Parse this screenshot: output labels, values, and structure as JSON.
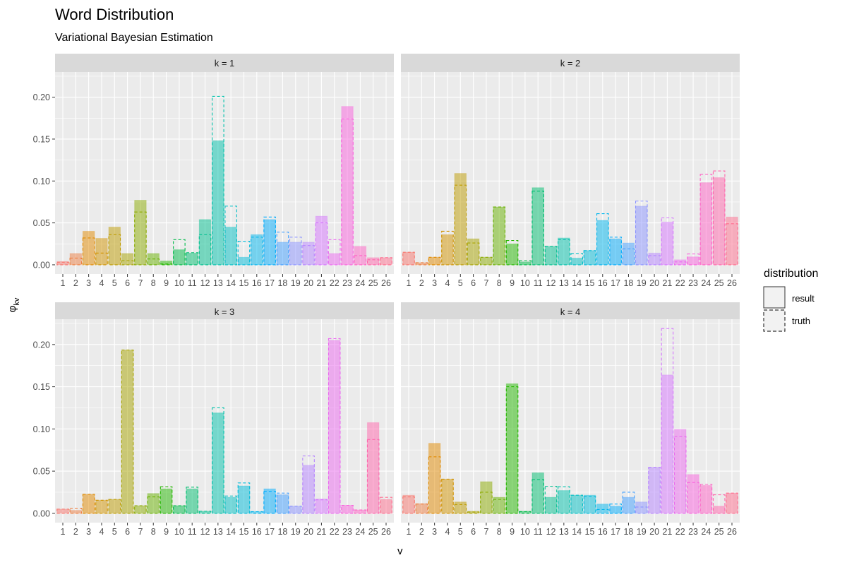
{
  "chart_data": {
    "type": "bar",
    "title": "Word Distribution",
    "subtitle": "Variational Bayesian Estimation",
    "xlabel": "v",
    "ylabel": "φ",
    "ylabel_subscript": "kv",
    "ylim": [
      -0.011,
      0.23
    ],
    "yticks": [
      0.0,
      0.05,
      0.1,
      0.15,
      0.2
    ],
    "ytick_labels": [
      "0.00",
      "0.05",
      "0.10",
      "0.15",
      "0.20"
    ],
    "categories": [
      "1",
      "2",
      "3",
      "4",
      "5",
      "6",
      "7",
      "8",
      "9",
      "10",
      "11",
      "12",
      "13",
      "14",
      "15",
      "16",
      "17",
      "18",
      "19",
      "20",
      "21",
      "22",
      "23",
      "24",
      "25",
      "26"
    ],
    "grid": true,
    "legend": {
      "title": "distribution",
      "placement": "right",
      "entries": [
        "result",
        "truth"
      ]
    },
    "facets": [
      {
        "label": "k = 1",
        "result": [
          0.004,
          0.0135,
          0.04,
          0.0315,
          0.045,
          0.0135,
          0.077,
          0.0135,
          0.0045,
          0.018,
          0.014,
          0.054,
          0.148,
          0.045,
          0.009,
          0.036,
          0.054,
          0.027,
          0.027,
          0.027,
          0.058,
          0.0135,
          0.189,
          0.022,
          0.0085,
          0.0085
        ],
        "truth": [
          0.003,
          0.008,
          0.032,
          0.014,
          0.036,
          0.005,
          0.063,
          0.007,
          0.001,
          0.03,
          0.0145,
          0.036,
          0.201,
          0.07,
          0.028,
          0.033,
          0.057,
          0.039,
          0.033,
          0.023,
          0.05,
          0.03,
          0.174,
          0.011,
          0.006,
          0.0085
        ]
      },
      {
        "label": "k = 2",
        "result": [
          0.015,
          0.0025,
          0.009,
          0.036,
          0.109,
          0.031,
          0.009,
          0.069,
          0.025,
          0.0035,
          0.092,
          0.022,
          0.032,
          0.008,
          0.017,
          0.053,
          0.031,
          0.026,
          0.07,
          0.014,
          0.051,
          0.006,
          0.0095,
          0.098,
          0.104,
          0.057
        ],
        "truth": [
          0.015,
          0.0025,
          0.009,
          0.04,
          0.095,
          0.026,
          0.009,
          0.069,
          0.029,
          0.005,
          0.088,
          0.022,
          0.03,
          0.0135,
          0.017,
          0.061,
          0.033,
          0.019,
          0.076,
          0.011,
          0.056,
          0.0035,
          0.013,
          0.108,
          0.112,
          0.049
        ]
      },
      {
        "label": "k = 3",
        "result": [
          0.005,
          0.0035,
          0.0225,
          0.0155,
          0.0165,
          0.1935,
          0.009,
          0.0235,
          0.029,
          0.009,
          0.029,
          0.0025,
          0.119,
          0.019,
          0.0325,
          0.002,
          0.029,
          0.022,
          0.0085,
          0.057,
          0.017,
          0.205,
          0.0095,
          0.004,
          0.1075,
          0.0165
        ],
        "truth": [
          0.005,
          0.006,
          0.0225,
          0.0155,
          0.0165,
          0.1935,
          0.009,
          0.0195,
          0.0315,
          0.009,
          0.031,
          0.0025,
          0.125,
          0.0205,
          0.036,
          0.002,
          0.026,
          0.024,
          0.0085,
          0.068,
          0.016,
          0.207,
          0.0095,
          0.004,
          0.0875,
          0.019
        ]
      },
      {
        "label": "k = 4",
        "result": [
          0.0215,
          0.0115,
          0.083,
          0.0405,
          0.0135,
          0.0025,
          0.0375,
          0.019,
          0.1535,
          0.0025,
          0.048,
          0.019,
          0.027,
          0.0215,
          0.0215,
          0.011,
          0.0085,
          0.019,
          0.0135,
          0.0545,
          0.164,
          0.0995,
          0.046,
          0.033,
          0.0085,
          0.024
        ],
        "truth": [
          0.0195,
          0.011,
          0.067,
          0.0405,
          0.0105,
          0.0015,
          0.025,
          0.0165,
          0.15,
          0.002,
          0.04,
          0.032,
          0.0315,
          0.0215,
          0.02,
          0.0045,
          0.011,
          0.025,
          0.0075,
          0.0545,
          0.219,
          0.091,
          0.0365,
          0.0345,
          0.022,
          0.024
        ]
      }
    ]
  }
}
